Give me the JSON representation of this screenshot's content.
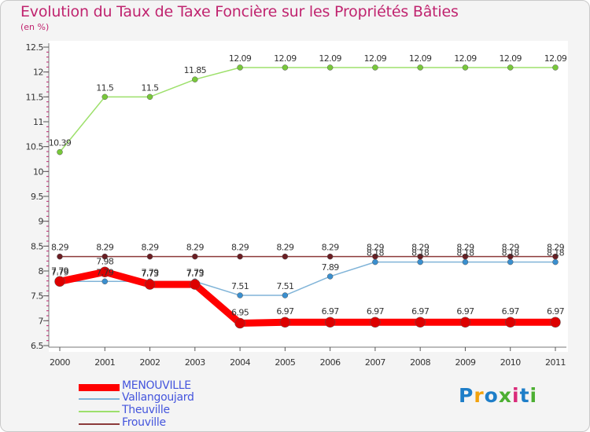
{
  "header": {
    "title": "Evolution du Taux de Taxe Foncière sur les Propriétés Bâties",
    "subtitle": "(en %)"
  },
  "logo": {
    "text": "Proxiti",
    "letter_colors": [
      "#1e7ec8",
      "#f2a20c",
      "#1e7ec8",
      "#4caf32",
      "#d92b7a",
      "#1e7ec8",
      "#4caf32"
    ]
  },
  "chart_data": {
    "type": "line",
    "title": "Evolution du Taux de Taxe Foncière sur les Propriétés Bâties",
    "ylabel": "(en %)",
    "xlabel": "",
    "ylim": [
      6.5,
      12.5
    ],
    "yticks": [
      "6.5",
      "7",
      "7.5",
      "8",
      "8.5",
      "9",
      "9.5",
      "10",
      "10.5",
      "11",
      "11.5",
      "12",
      "12.5"
    ],
    "grid": false,
    "x": [
      "2000",
      "2001",
      "2002",
      "2003",
      "2004",
      "2005",
      "2006",
      "2007",
      "2008",
      "2009",
      "2010",
      "2011"
    ],
    "series": [
      {
        "name": "MENOUVILLE",
        "color": "#ff0000",
        "values": [
          7.79,
          7.98,
          7.73,
          7.73,
          6.95,
          6.97,
          6.97,
          6.97,
          6.97,
          6.97,
          6.97,
          6.97
        ],
        "labels": [
          "7.79",
          "7.98",
          "7.73",
          "7.73",
          "6.95",
          "6.97",
          "6.97",
          "6.97",
          "6.97",
          "6.97",
          "6.97",
          "6.97"
        ]
      },
      {
        "name": "Vallangoujard",
        "color": "#7fb3d6",
        "values": [
          7.79,
          7.79,
          7.79,
          7.79,
          7.51,
          7.51,
          7.89,
          8.18,
          8.18,
          8.18,
          8.18,
          8.18
        ],
        "labels": [
          "7.79",
          "7.79",
          "7.79",
          "7.79",
          "7.51",
          "7.51",
          "7.89",
          "8.18",
          "8.18",
          "8.18",
          "8.18",
          "8.18"
        ]
      },
      {
        "name": "Theuville",
        "color": "#9ee06a",
        "values": [
          10.39,
          11.5,
          11.5,
          11.85,
          12.09,
          12.09,
          12.09,
          12.09,
          12.09,
          12.09,
          12.09,
          12.09
        ],
        "labels": [
          "10.39",
          "11.5",
          "11.5",
          "11.85",
          "12.09",
          "12.09",
          "12.09",
          "12.09",
          "12.09",
          "12.09",
          "12.09",
          "12.09"
        ]
      },
      {
        "name": "Frouville",
        "color": "#8c3a3a",
        "values": [
          8.29,
          8.29,
          8.29,
          8.29,
          8.29,
          8.29,
          8.29,
          8.29,
          8.29,
          8.29,
          8.29,
          8.29
        ],
        "labels": [
          "8.29",
          "8.29",
          "8.29",
          "8.29",
          "8.29",
          "8.29",
          "8.29",
          "8.29",
          "8.29",
          "8.29",
          "8.29",
          "8.29"
        ]
      }
    ],
    "legend": [
      "MENOUVILLE",
      "Vallangoujard",
      "Theuville",
      "Frouville"
    ],
    "legend_position": "bottom-left"
  }
}
